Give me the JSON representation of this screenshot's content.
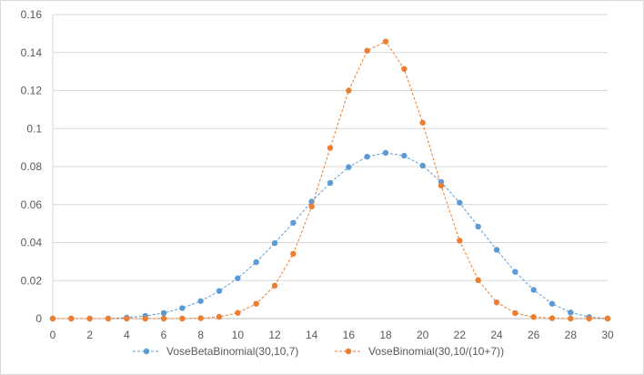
{
  "chart_data": {
    "type": "line",
    "title": "",
    "xlabel": "",
    "ylabel": "",
    "xlim": [
      0,
      30
    ],
    "ylim": [
      0,
      0.16
    ],
    "x_ticks": [
      "0",
      "2",
      "4",
      "6",
      "8",
      "10",
      "12",
      "14",
      "16",
      "18",
      "20",
      "22",
      "24",
      "26",
      "28",
      "30"
    ],
    "y_ticks": [
      "0",
      "0.02",
      "0.04",
      "0.06",
      "0.08",
      "0.1",
      "0.12",
      "0.14",
      "0.16"
    ],
    "grid": "horizontal",
    "legend_position": "bottom",
    "x": [
      0,
      1,
      2,
      3,
      4,
      5,
      6,
      7,
      8,
      9,
      10,
      11,
      12,
      13,
      14,
      15,
      16,
      17,
      18,
      19,
      20,
      21,
      22,
      23,
      24,
      25,
      26,
      27,
      28,
      29,
      30
    ],
    "series": [
      {
        "name": "VoseBetaBinomial(30,10,7)",
        "color": "#5b9bd5",
        "style": "dashed line with circle markers",
        "values": [
          0,
          0,
          0,
          0,
          0.0005,
          0.0014,
          0.0029,
          0.0055,
          0.0092,
          0.0145,
          0.0212,
          0.0297,
          0.0397,
          0.0504,
          0.0616,
          0.0714,
          0.0797,
          0.0852,
          0.0872,
          0.0857,
          0.0805,
          0.0719,
          0.061,
          0.0484,
          0.0362,
          0.0246,
          0.0151,
          0.0078,
          0.0032,
          0.0008,
          0
        ]
      },
      {
        "name": "VoseBinomial(30,10/(10+7))",
        "color": "#ed7d31",
        "style": "dashed line with circle markers",
        "values": [
          0,
          0,
          0,
          0,
          0,
          0,
          0,
          0,
          0.0002,
          0.0009,
          0.003,
          0.0078,
          0.0173,
          0.0341,
          0.059,
          0.0898,
          0.12,
          0.141,
          0.1458,
          0.1314,
          0.1031,
          0.07,
          0.041,
          0.0202,
          0.0085,
          0.0029,
          0.0008,
          0.0002,
          0,
          0,
          0
        ]
      }
    ]
  }
}
